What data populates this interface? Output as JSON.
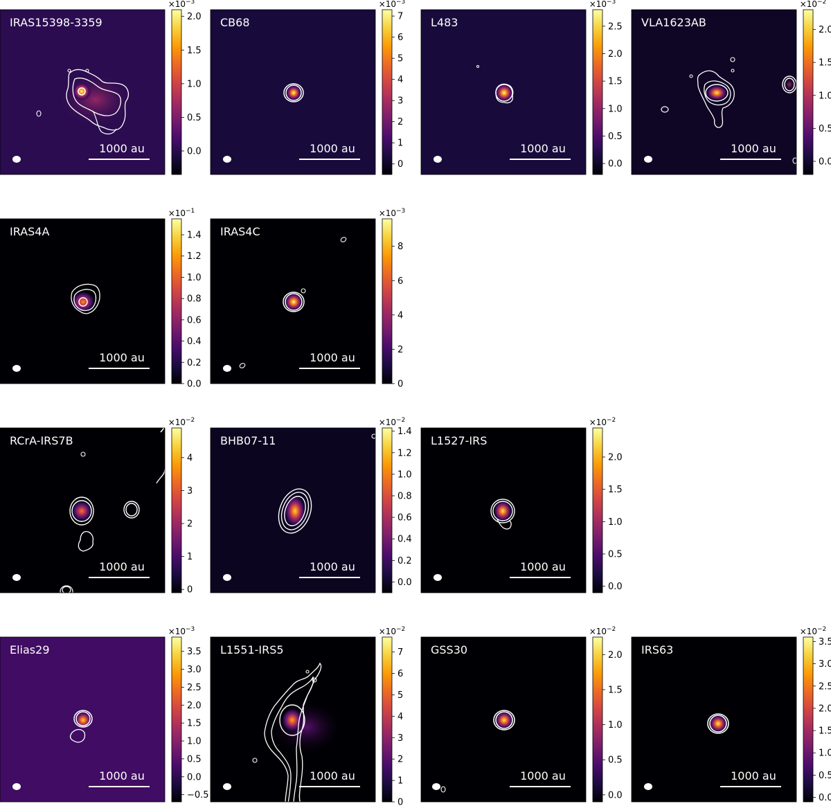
{
  "figure": {
    "scalebar_label": "1000 au",
    "colormap": [
      "#000004",
      "#1b0c41",
      "#4a0c6b",
      "#781c6d",
      "#a52c60",
      "#cf4446",
      "#ed6925",
      "#fb9b06",
      "#f7d13d",
      "#fcffa4"
    ],
    "contour_color": "#ffffff"
  },
  "chart_data": [
    {
      "type": "heatmap",
      "title": "IRAS15398-3359",
      "exponent": "-3",
      "clim": [
        -0.35,
        2.1
      ],
      "ticks": [
        0.0,
        0.5,
        1.0,
        1.5,
        2.0
      ],
      "tick_labels": [
        "0.0",
        "0.5",
        "1.0",
        "1.5",
        "2.0"
      ],
      "background_level": 0.15,
      "source_peak": 1.0,
      "extended_emission": true
    },
    {
      "type": "heatmap",
      "title": "CB68",
      "exponent": "-3",
      "clim": [
        -0.5,
        7.3
      ],
      "ticks": [
        0,
        1,
        2,
        3,
        4,
        5,
        6,
        7
      ],
      "tick_labels": [
        "0",
        "1",
        "2",
        "3",
        "4",
        "5",
        "6",
        "7"
      ],
      "background_level": 0.1,
      "source_peak": 1.0
    },
    {
      "type": "heatmap",
      "title": "L483",
      "exponent": "-3",
      "clim": [
        -0.2,
        2.8
      ],
      "ticks": [
        0.0,
        0.5,
        1.0,
        1.5,
        2.0,
        2.5
      ],
      "tick_labels": [
        "0.0",
        "0.5",
        "1.0",
        "1.5",
        "2.0",
        "2.5"
      ],
      "background_level": 0.1,
      "source_peak": 1.0
    },
    {
      "type": "heatmap",
      "title": "VLA1623AB",
      "exponent": "-2",
      "clim": [
        -0.2,
        2.3
      ],
      "ticks": [
        0.0,
        0.5,
        1.0,
        1.5,
        2.0
      ],
      "tick_labels": [
        "0.0",
        "0.5",
        "1.0",
        "1.5",
        "2.0"
      ],
      "background_level": 0.06,
      "source_peak": 0.95,
      "secondary_source": true
    },
    {
      "type": "heatmap",
      "title": "IRAS4A",
      "exponent": "-1",
      "clim": [
        0.0,
        1.55
      ],
      "ticks": [
        0.0,
        0.2,
        0.4,
        0.6,
        0.8,
        1.0,
        1.2,
        1.4
      ],
      "tick_labels": [
        "0.0",
        "0.2",
        "0.4",
        "0.6",
        "0.8",
        "1.0",
        "1.2",
        "1.4"
      ],
      "background_level": 0.0,
      "source_peak": 0.75
    },
    {
      "type": "heatmap",
      "title": "IRAS4C",
      "exponent": "-3",
      "clim": [
        0.0,
        9.6
      ],
      "ticks": [
        0,
        2,
        4,
        6,
        8
      ],
      "tick_labels": [
        "0",
        "2",
        "4",
        "6",
        "8"
      ],
      "background_level": 0.0,
      "source_peak": 1.0
    },
    {
      "type": "heatmap",
      "title": "RCrA-IRS7B",
      "exponent": "-2",
      "clim": [
        -0.1,
        4.9
      ],
      "ticks": [
        0,
        1,
        2,
        3,
        4
      ],
      "tick_labels": [
        "0",
        "1",
        "2",
        "3",
        "4"
      ],
      "background_level": 0.0,
      "source_peak": 0.7
    },
    {
      "type": "heatmap",
      "title": "BHB07-11",
      "exponent": "-2",
      "clim": [
        -0.1,
        1.43
      ],
      "ticks": [
        0.0,
        0.2,
        0.4,
        0.6,
        0.8,
        1.0,
        1.2,
        1.4
      ],
      "tick_labels": [
        "0.0",
        "0.2",
        "0.4",
        "0.6",
        "0.8",
        "1.0",
        "1.2",
        "1.4"
      ],
      "background_level": 0.05,
      "source_peak": 0.9
    },
    {
      "type": "heatmap",
      "title": "L1527-IRS",
      "exponent": "-2",
      "clim": [
        -0.1,
        2.45
      ],
      "ticks": [
        0.0,
        0.5,
        1.0,
        1.5,
        2.0
      ],
      "tick_labels": [
        "0.0",
        "0.5",
        "1.0",
        "1.5",
        "2.0"
      ],
      "background_level": 0.0,
      "source_peak": 0.95
    },
    {
      "type": "heatmap",
      "title": "Elias29",
      "exponent": "-3",
      "clim": [
        -0.7,
        3.9
      ],
      "ticks": [
        -0.5,
        0.0,
        0.5,
        1.0,
        1.5,
        2.0,
        2.5,
        3.0,
        3.5
      ],
      "tick_labels": [
        "−0.5",
        "0.0",
        "0.5",
        "1.0",
        "1.5",
        "2.0",
        "2.5",
        "3.0",
        "3.5"
      ],
      "background_level": 0.2,
      "source_peak": 0.9
    },
    {
      "type": "heatmap",
      "title": "L1551-IRS5",
      "exponent": "-2",
      "clim": [
        0.0,
        7.7
      ],
      "ticks": [
        0,
        1,
        2,
        3,
        4,
        5,
        6,
        7
      ],
      "tick_labels": [
        "0",
        "1",
        "2",
        "3",
        "4",
        "5",
        "6",
        "7"
      ],
      "background_level": 0.0,
      "source_peak": 0.8,
      "extended_emission": true
    },
    {
      "type": "heatmap",
      "title": "GSS30",
      "exponent": "-2",
      "clim": [
        -0.1,
        2.25
      ],
      "ticks": [
        0.0,
        0.5,
        1.0,
        1.5,
        2.0
      ],
      "tick_labels": [
        "0.0",
        "0.5",
        "1.0",
        "1.5",
        "2.0"
      ],
      "background_level": 0.0,
      "source_peak": 0.95
    },
    {
      "type": "heatmap",
      "title": "IRS63",
      "exponent": "-2",
      "clim": [
        -0.1,
        3.6
      ],
      "ticks": [
        0.0,
        0.5,
        1.0,
        1.5,
        2.0,
        2.5,
        3.0,
        3.5
      ],
      "tick_labels": [
        "0.0",
        "0.5",
        "1.0",
        "1.5",
        "2.0",
        "2.5",
        "3.0",
        "3.5"
      ],
      "background_level": 0.0,
      "source_peak": 0.95
    }
  ]
}
